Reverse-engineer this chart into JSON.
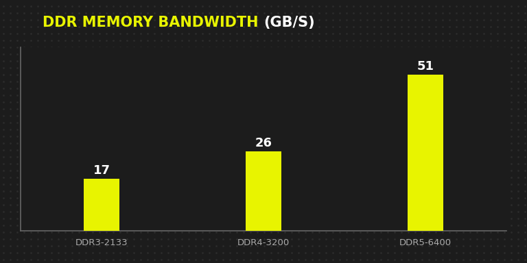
{
  "categories": [
    "DDR3-2133",
    "DDR4-3200",
    "DDR5-6400"
  ],
  "values": [
    17,
    26,
    51
  ],
  "bar_color": "#E8F400",
  "background_color": "#1c1c1c",
  "dot_color": "#2e2e2e",
  "title_part1": "DDR MEMORY BANDWIDTH ",
  "title_part2": "(GB/S)",
  "title_color1": "#E8F400",
  "title_color2": "#ffffff",
  "title_fontsize": 15,
  "label_fontsize": 9.5,
  "value_fontsize": 13,
  "xlabel_color": "#aaaaaa",
  "value_color": "#ffffff",
  "spine_color": "#666666",
  "ylim": [
    0,
    60
  ],
  "bar_width": 0.22
}
